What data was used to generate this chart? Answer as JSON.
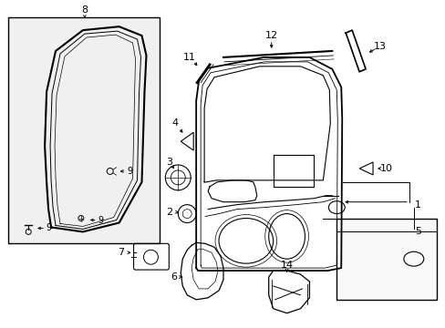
{
  "bg": "#ffffff",
  "figsize": [
    4.89,
    3.6
  ],
  "dpi": 100,
  "lc": "#000000",
  "gray_fill": "#e8e8e8",
  "light_gray": "#f0f0f0"
}
